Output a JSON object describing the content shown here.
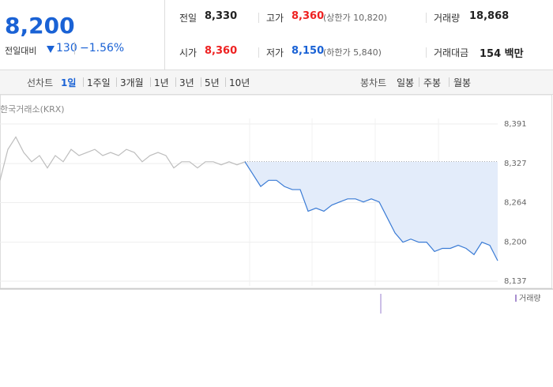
{
  "quote": {
    "price": "8,200",
    "change_label": "전일대비",
    "change": "130",
    "change_pct": "−1.56%"
  },
  "summary": [
    {
      "label": "전일",
      "value": "8,330"
    },
    {
      "label": "고가",
      "value": "8,360",
      "note": "(상한가 10,820)"
    },
    {
      "label": "거래량",
      "value": "18,868"
    },
    {
      "label": "시가",
      "value": "8,360"
    },
    {
      "label": "저가",
      "value": "8,150",
      "note": "(하한가 5,840)"
    },
    {
      "label": "거래대금",
      "value": "154 백만"
    }
  ],
  "tabs": {
    "line_label": "선차트",
    "line": [
      "1일",
      "1주일",
      "3개월",
      "1년",
      "3년",
      "5년",
      "10년"
    ],
    "candle_label": "봉차트",
    "candle": [
      "일봉",
      "주봉",
      "월봉"
    ]
  },
  "chart_data": {
    "type": "line",
    "source": "한국거래소(KRX)",
    "ylim": [
      8137,
      8391
    ],
    "yticks": [
      {
        "value": 8137,
        "label": "8,137"
      },
      {
        "value": 8200,
        "label": "8,200"
      },
      {
        "value": 8264,
        "label": "8,264"
      },
      {
        "value": 8327,
        "label": "8,327"
      },
      {
        "value": 8391,
        "label": "8,391"
      }
    ],
    "baseline": 8330,
    "grid": true,
    "series": [
      {
        "color": "#bdbdbd",
        "values": [
          8300,
          8350,
          8370,
          8345,
          8330,
          8340,
          8320,
          8340,
          8330,
          8350,
          8340,
          8345,
          8350,
          8340,
          8345,
          8340,
          8350,
          8345,
          8330,
          8340,
          8345,
          8340,
          8320,
          8330,
          8330,
          8320,
          8330,
          8330,
          8325,
          8330,
          8325,
          8330,
          null,
          null,
          null,
          null,
          null,
          null,
          null,
          null,
          null,
          null,
          null,
          null,
          null,
          null,
          null,
          null,
          null,
          null,
          null,
          null,
          null,
          null,
          null,
          null,
          null,
          null,
          null,
          null,
          null,
          null,
          null,
          null
        ]
      },
      {
        "color": "#3a7bd5",
        "fill": "#e3ecfa",
        "values": [
          null,
          null,
          null,
          null,
          null,
          null,
          null,
          null,
          null,
          null,
          null,
          null,
          null,
          null,
          null,
          null,
          null,
          null,
          null,
          null,
          null,
          null,
          null,
          null,
          null,
          null,
          null,
          null,
          null,
          null,
          null,
          8330,
          8310,
          8290,
          8300,
          8300,
          8290,
          8285,
          8285,
          8250,
          8255,
          8250,
          8260,
          8265,
          8270,
          8270,
          8265,
          8270,
          8265,
          8240,
          8215,
          8200,
          8205,
          8200,
          8200,
          8185,
          8190,
          8190,
          8195,
          8190,
          8180,
          8200,
          8195,
          8170
        ]
      }
    ],
    "volume": {
      "label": "거래량",
      "color": "#a98fd0"
    }
  }
}
